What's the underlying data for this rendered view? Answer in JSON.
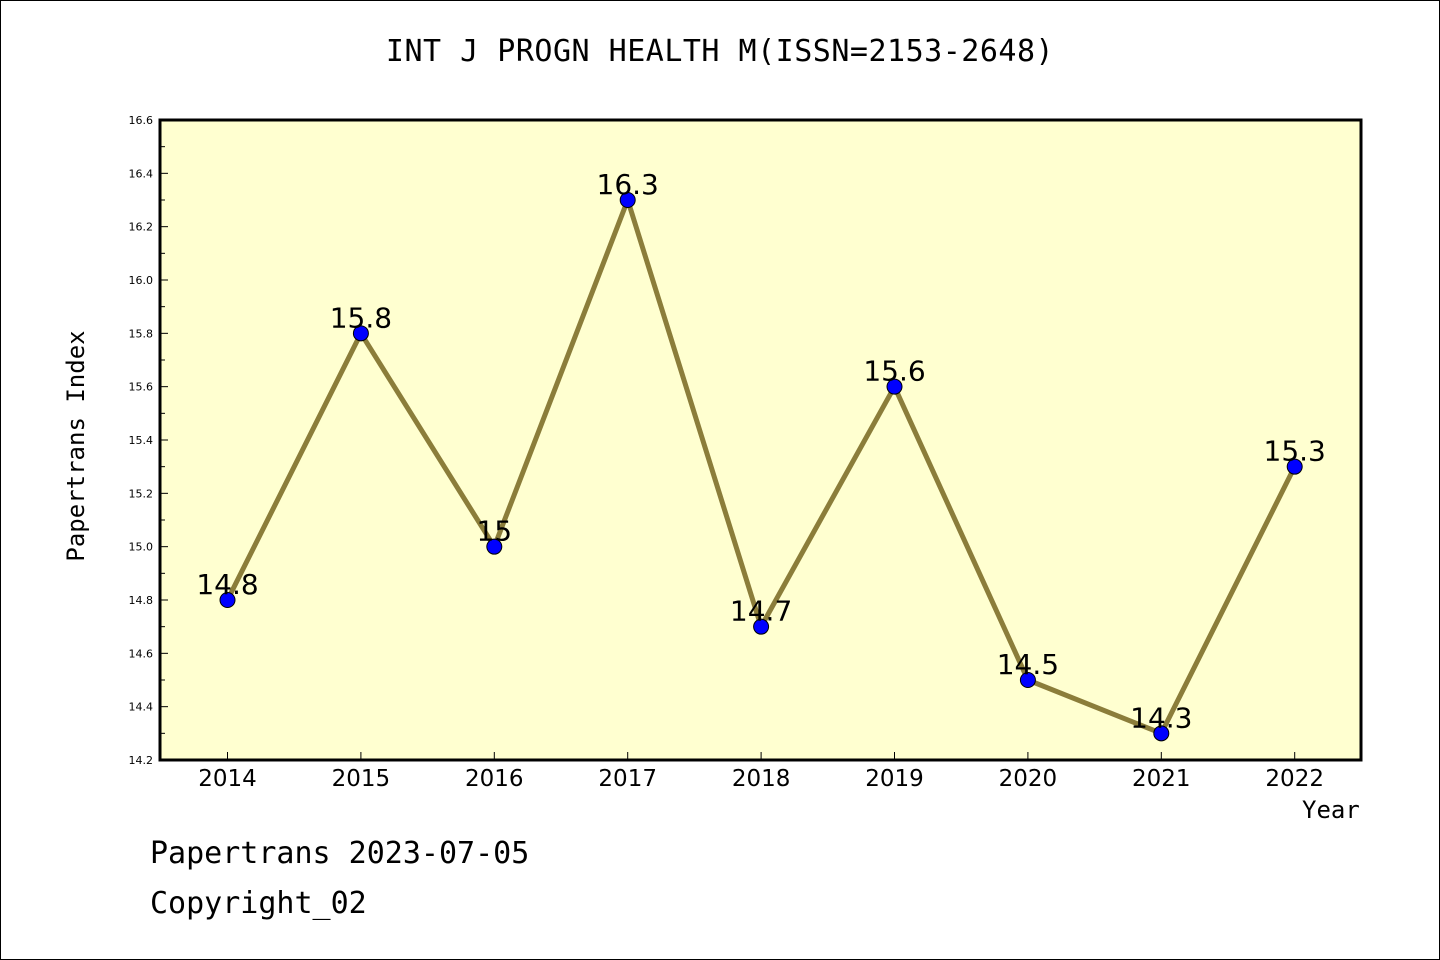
{
  "chart_data": {
    "type": "line",
    "title": "INT J PROGN HEALTH M(ISSN=2153-2648)",
    "xlabel": "Year",
    "ylabel": "Papertrans Index",
    "categories": [
      "2014",
      "2015",
      "2016",
      "2017",
      "2018",
      "2019",
      "2020",
      "2021",
      "2022"
    ],
    "series": [
      {
        "values": [
          14.8,
          15.8,
          15.0,
          16.3,
          14.7,
          15.6,
          14.5,
          14.3,
          15.3
        ]
      }
    ],
    "data_labels": [
      "14.8",
      "15.8",
      "15",
      "16.3",
      "14.7",
      "15.6",
      "14.5",
      "14.3",
      "15.3"
    ],
    "ylim": [
      14.2,
      16.6
    ],
    "yticks": [
      "14.2",
      "14.4",
      "14.6",
      "14.8",
      "15.0",
      "15.2",
      "15.4",
      "15.6",
      "15.8",
      "16.0",
      "16.2",
      "16.4",
      "16.6"
    ],
    "grid": false,
    "colors": {
      "plot_background": "#ffffd0",
      "line": "#8b7d3a",
      "marker": "#0000ff"
    }
  },
  "footer": {
    "date_text": "Papertrans 2023-07-05",
    "copyright_text": "Copyright_02"
  }
}
